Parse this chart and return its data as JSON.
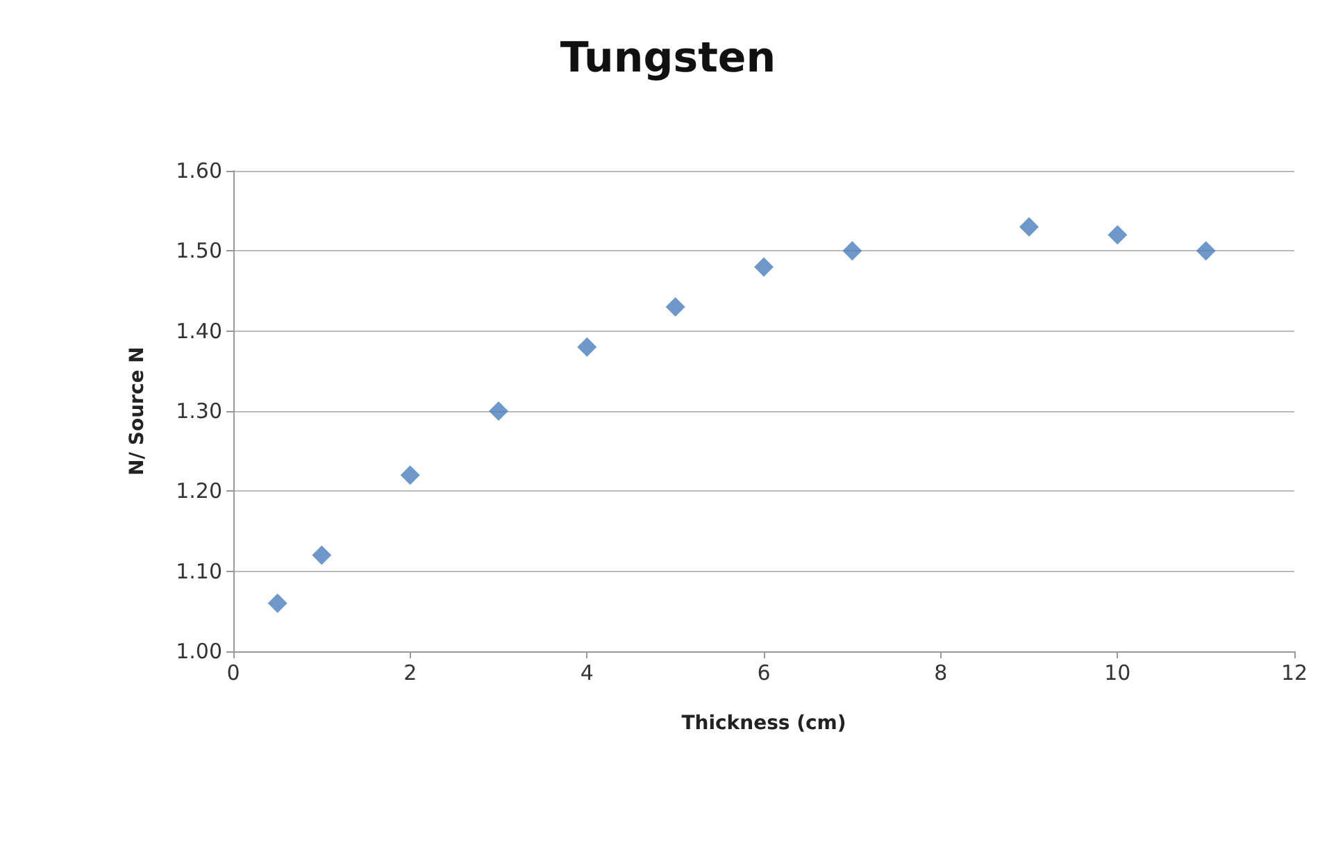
{
  "chart_data": {
    "type": "scatter",
    "title": "Tungsten",
    "xlabel": "Thickness (cm)",
    "ylabel": "N/ Source N",
    "x": [
      0.5,
      1,
      2,
      3,
      4,
      5,
      6,
      7,
      9,
      10,
      11
    ],
    "series": [
      {
        "color": "#4a7ebb",
        "values": [
          1.06,
          1.12,
          1.22,
          1.3,
          1.38,
          1.43,
          1.48,
          1.5,
          1.53,
          1.52,
          1.5
        ]
      }
    ],
    "xlim": [
      0,
      12
    ],
    "xticks": [
      0,
      2,
      4,
      6,
      8,
      10,
      12
    ],
    "ylim": [
      1.0,
      1.6
    ],
    "yticks": [
      {
        "value": 1.0,
        "label": "1.00"
      },
      {
        "value": 1.1,
        "label": "1.10"
      },
      {
        "value": 1.2,
        "label": "1.20"
      },
      {
        "value": 1.3,
        "label": "1.30"
      },
      {
        "value": 1.4,
        "label": "1.40"
      },
      {
        "value": 1.5,
        "label": "1.50"
      },
      {
        "value": 1.6,
        "label": "1.60"
      }
    ],
    "grid": "y",
    "marker": "diamond"
  }
}
